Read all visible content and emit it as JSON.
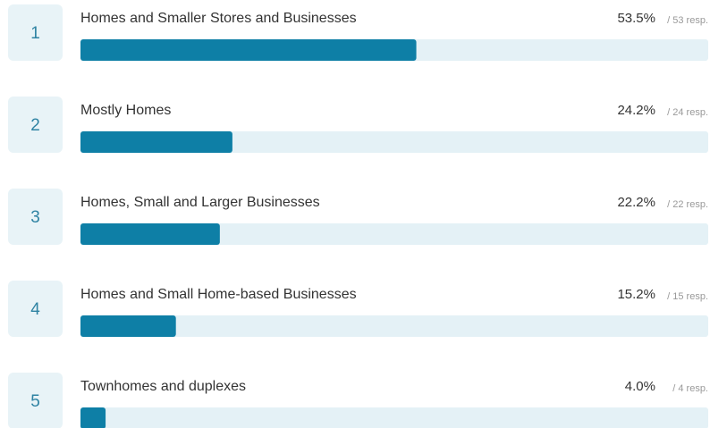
{
  "chart_data": {
    "type": "bar",
    "ranks": [
      1,
      2,
      3,
      4,
      5
    ],
    "categories": [
      "Homes and Smaller Stores and Businesses",
      "Mostly Homes",
      "Homes, Small and Larger Businesses",
      "Homes and Small Home-based Businesses",
      "Townhomes and duplexes"
    ],
    "values": [
      53.5,
      24.2,
      22.2,
      15.2,
      4.0
    ],
    "value_labels": [
      "53.5%",
      "24.2%",
      "22.2%",
      "15.2%",
      "4.0%"
    ],
    "response_labels": [
      "/ 53 resp.",
      "/ 24 resp.",
      "/ 22 resp.",
      "/ 15 resp.",
      "/ 4 resp."
    ],
    "xlim": [
      0,
      100
    ],
    "color": "#0e7fa6",
    "track_color": "#e4f1f6"
  }
}
